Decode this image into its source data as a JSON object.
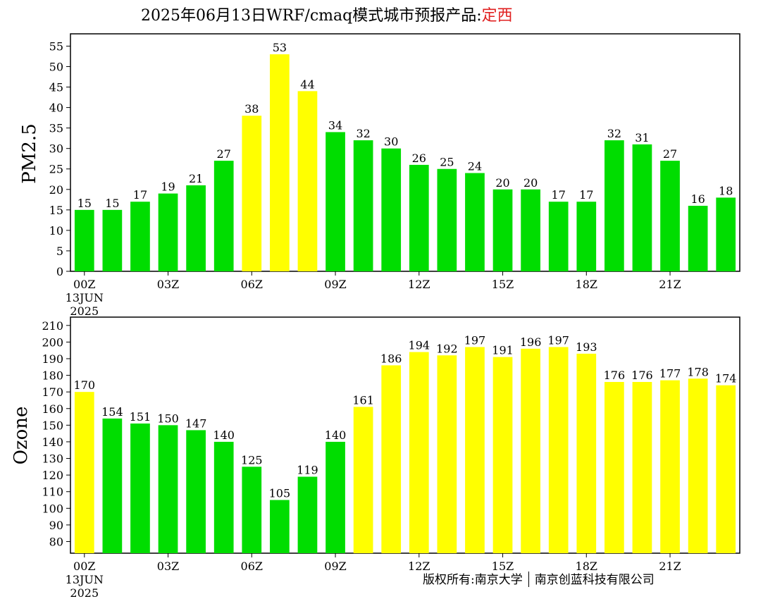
{
  "header": {
    "title_prefix": "2025年06月13日WRF/cmaq模式城市预报产品:",
    "city": "定西",
    "city_color": "#e02020"
  },
  "footer": {
    "copyright_left": "版权所有:南京大学",
    "copyright_right": "南京创蓝科技有限公司"
  },
  "colors": {
    "good": "#00dd00",
    "moderate": "#ffff00",
    "frame": "#000000"
  },
  "chart_data": [
    {
      "type": "bar",
      "ylabel": "PM2.5",
      "ylim": [
        0,
        58
      ],
      "yticks": [
        0,
        5,
        10,
        15,
        20,
        25,
        30,
        35,
        40,
        45,
        50,
        55
      ],
      "xtick_labels": [
        "00Z",
        "03Z",
        "06Z",
        "09Z",
        "12Z",
        "15Z",
        "18Z",
        "21Z"
      ],
      "xtick_positions": [
        0,
        3,
        6,
        9,
        12,
        15,
        18,
        21
      ],
      "date_label_line1": "13JUN",
      "date_label_line2": "2025",
      "values": [
        15,
        15,
        17,
        19,
        21,
        27,
        38,
        53,
        44,
        34,
        32,
        30,
        26,
        25,
        24,
        20,
        20,
        17,
        17,
        32,
        31,
        27,
        16,
        18
      ],
      "levels": [
        "good",
        "good",
        "good",
        "good",
        "good",
        "good",
        "moderate",
        "moderate",
        "moderate",
        "good",
        "good",
        "good",
        "good",
        "good",
        "good",
        "good",
        "good",
        "good",
        "good",
        "good",
        "good",
        "good",
        "good",
        "good"
      ]
    },
    {
      "type": "bar",
      "ylabel": "Ozone",
      "ylim": [
        73,
        215
      ],
      "yticks": [
        80,
        90,
        100,
        110,
        120,
        130,
        140,
        150,
        160,
        170,
        180,
        190,
        200,
        210
      ],
      "xtick_labels": [
        "00Z",
        "03Z",
        "06Z",
        "09Z",
        "12Z",
        "15Z",
        "18Z",
        "21Z"
      ],
      "xtick_positions": [
        0,
        3,
        6,
        9,
        12,
        15,
        18,
        21
      ],
      "date_label_line1": "13JUN",
      "date_label_line2": "2025",
      "values": [
        170,
        154,
        151,
        150,
        147,
        140,
        125,
        105,
        119,
        140,
        161,
        186,
        194,
        192,
        197,
        191,
        196,
        197,
        193,
        176,
        176,
        177,
        178,
        174
      ],
      "levels": [
        "moderate",
        "good",
        "good",
        "good",
        "good",
        "good",
        "good",
        "good",
        "good",
        "good",
        "moderate",
        "moderate",
        "moderate",
        "moderate",
        "moderate",
        "moderate",
        "moderate",
        "moderate",
        "moderate",
        "moderate",
        "moderate",
        "moderate",
        "moderate",
        "moderate"
      ]
    }
  ]
}
